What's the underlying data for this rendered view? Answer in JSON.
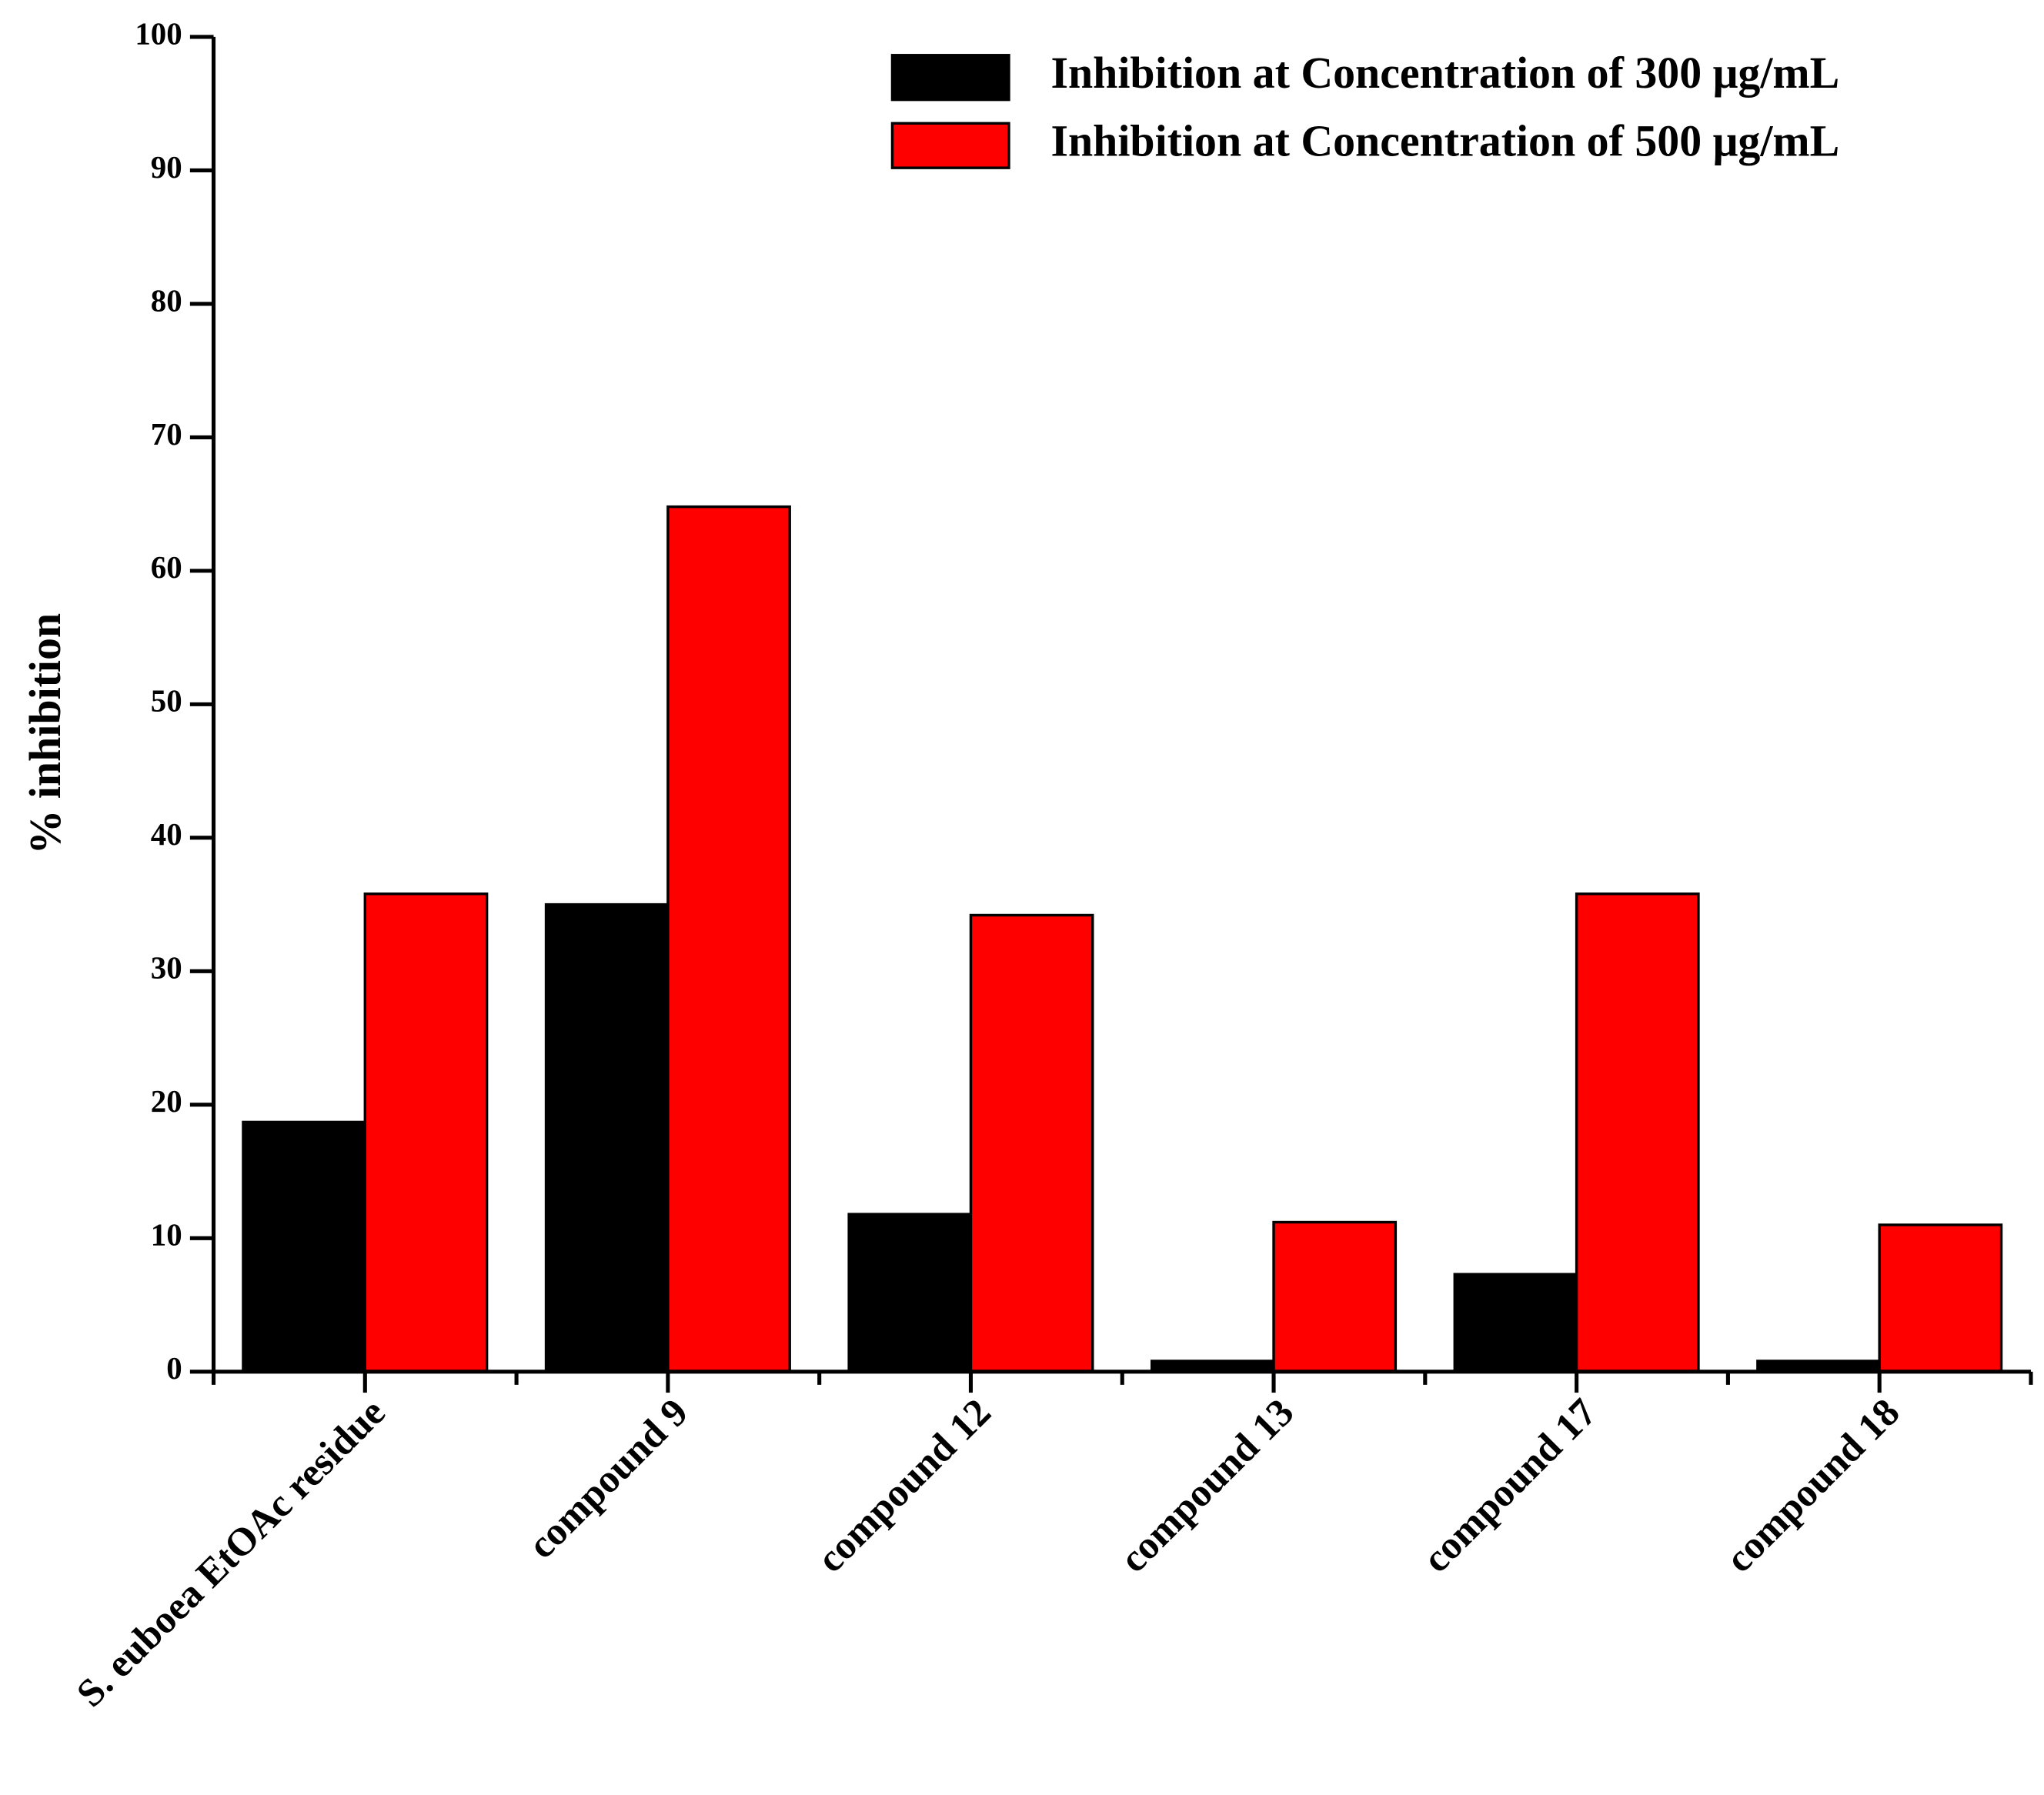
{
  "chart_data": {
    "type": "bar",
    "y_label": "% inhibition",
    "categories": [
      "S. euboea EtOAc residue",
      "compound 9",
      "compound 12",
      "compound 13",
      "compound 17",
      "compound 18"
    ],
    "series": [
      {
        "name": "Inhibition at Concentration of 300 μg/mL",
        "color": "#000000",
        "values": [
          18.7,
          35.0,
          11.8,
          0.8,
          7.3,
          0.8
        ]
      },
      {
        "name": "Inhibition at Concentration of 500 μg/mL",
        "color": "#ff0000",
        "values": [
          35.8,
          64.8,
          34.2,
          11.2,
          35.8,
          11.0
        ]
      }
    ],
    "ylim": [
      0,
      100
    ],
    "yticks": [
      0,
      10,
      20,
      30,
      40,
      50,
      60,
      70,
      80,
      90,
      100
    ],
    "legend": "top-right"
  }
}
